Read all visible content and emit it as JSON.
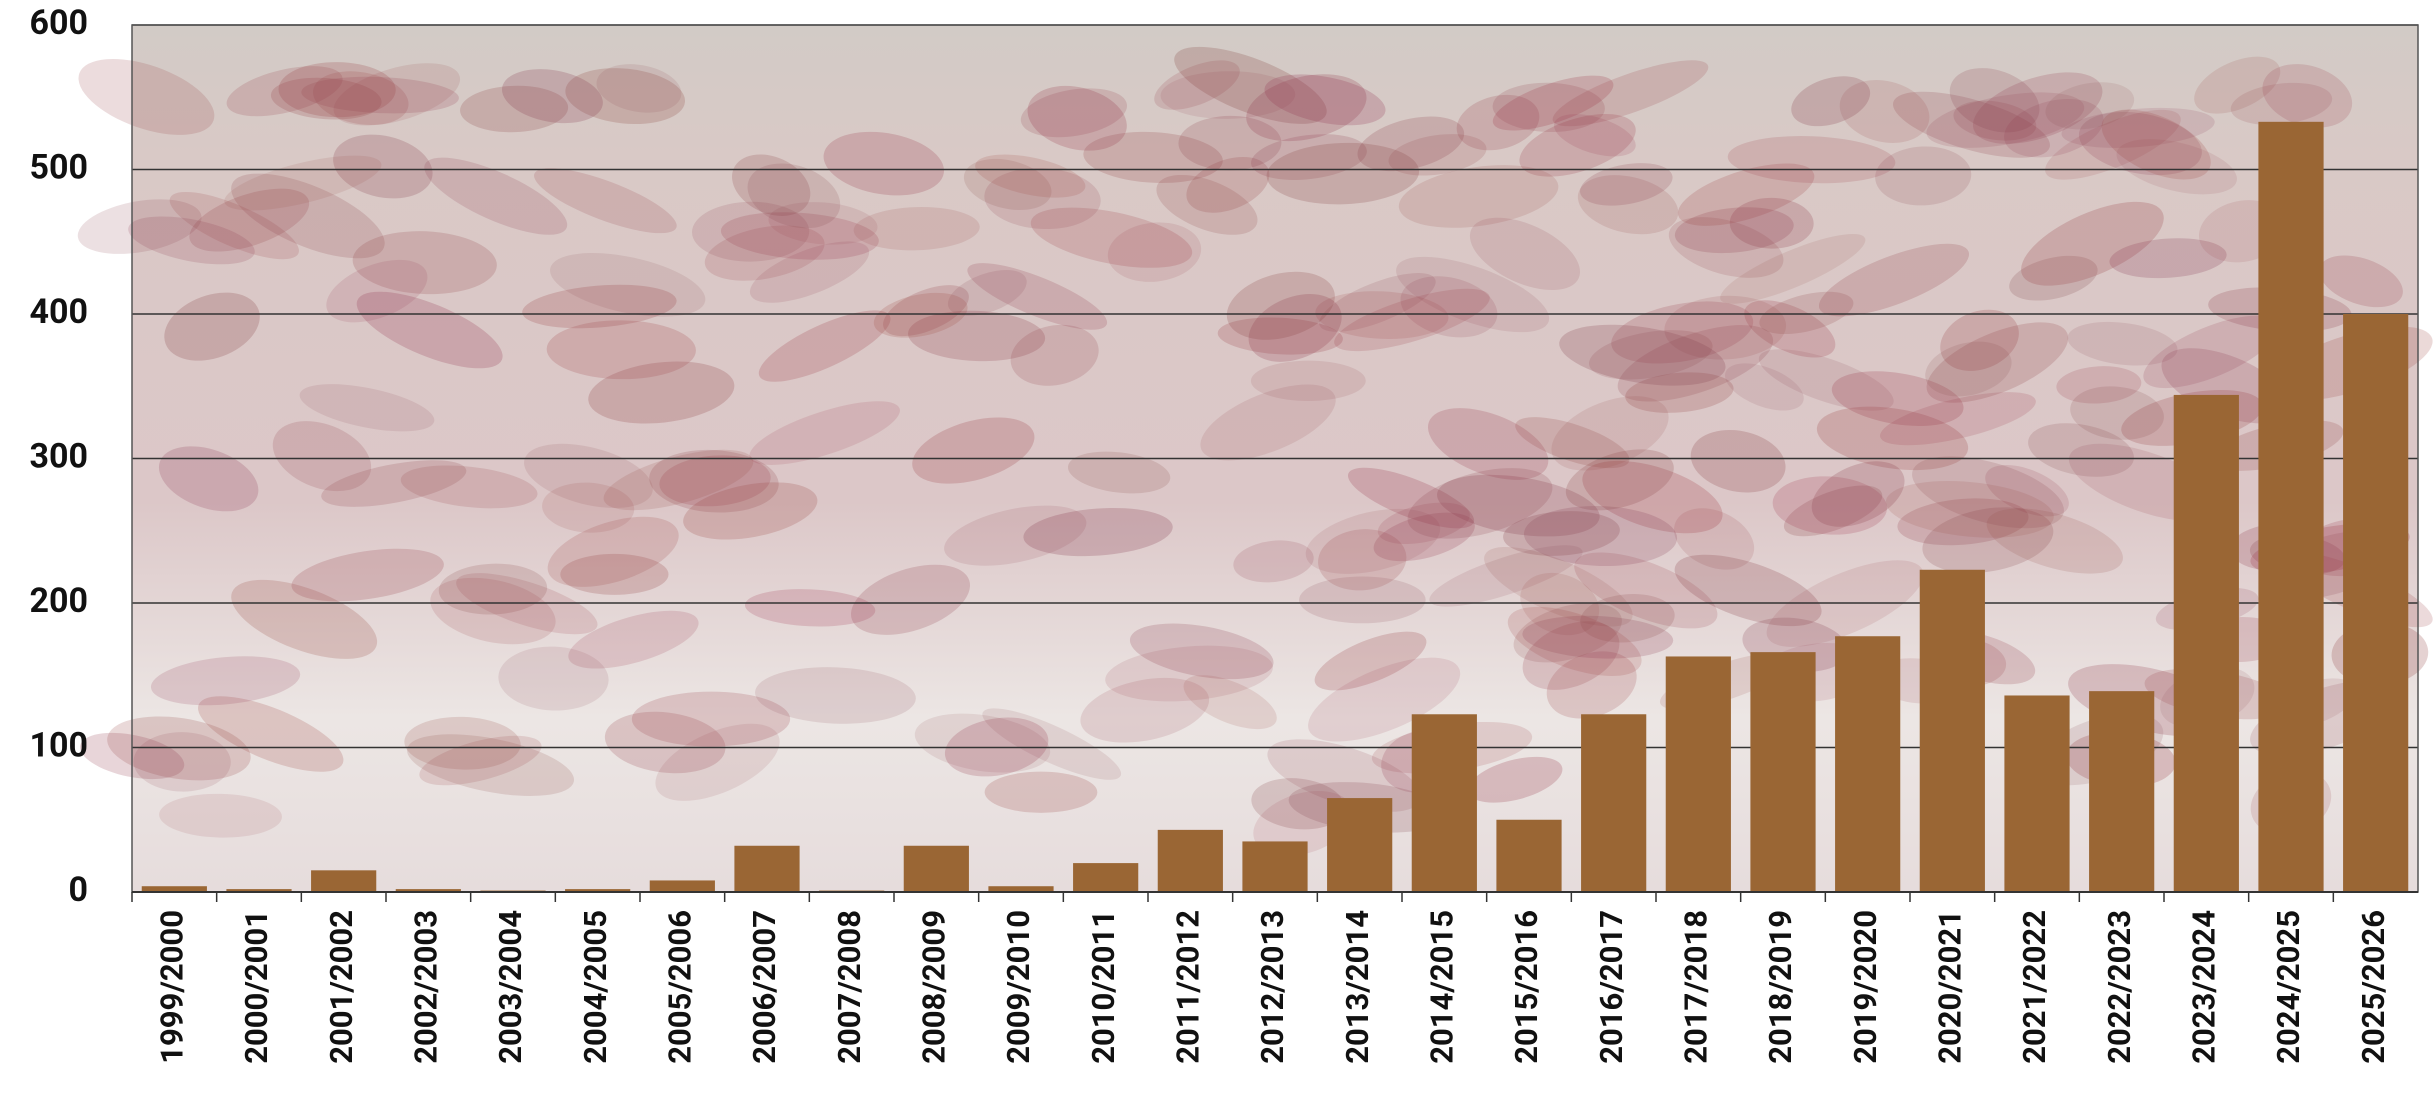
{
  "chart_data": {
    "type": "bar",
    "categories": [
      "1999/2000",
      "2000/2001",
      "2001/2002",
      "2002/2003",
      "2003/2004",
      "2004/2005",
      "2005/2006",
      "2006/2007",
      "2007/2008",
      "2008/2009",
      "2009/2010",
      "2010/2011",
      "2011/2012",
      "2012/2013",
      "2013/2014",
      "2014/2015",
      "2015/2016",
      "2016/2017",
      "2017/2018",
      "2018/2019",
      "2019/2020",
      "2020/2021",
      "2021/2022",
      "2022/2023",
      "2023/2024",
      "2024/2025",
      "2025/2026"
    ],
    "values": [
      4,
      2,
      15,
      2,
      1,
      2,
      8,
      32,
      1,
      32,
      4,
      20,
      43,
      35,
      65,
      123,
      50,
      123,
      163,
      166,
      177,
      223,
      136,
      139,
      344,
      533,
      400
    ],
    "color": "#9a6634",
    "ylim": [
      0,
      600
    ],
    "yticks": [
      0,
      100,
      200,
      300,
      400,
      500,
      600
    ],
    "grid": true
  }
}
